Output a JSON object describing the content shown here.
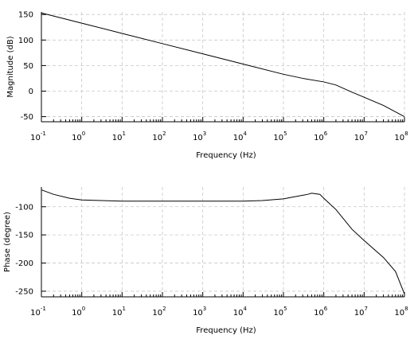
{
  "chart_data": [
    {
      "type": "line",
      "panel": "magnitude",
      "xlabel": "Frequency (Hz)",
      "ylabel": "Magnitude (dB)",
      "x_scale": "log",
      "xlim": [
        0.1,
        100000000
      ],
      "ylim": [
        -60,
        155
      ],
      "x_ticks": [
        {
          "base": "10",
          "exp": "-1"
        },
        {
          "base": "10",
          "exp": "0"
        },
        {
          "base": "10",
          "exp": "1"
        },
        {
          "base": "10",
          "exp": "2"
        },
        {
          "base": "10",
          "exp": "3"
        },
        {
          "base": "10",
          "exp": "4"
        },
        {
          "base": "10",
          "exp": "5"
        },
        {
          "base": "10",
          "exp": "6"
        },
        {
          "base": "10",
          "exp": "7"
        },
        {
          "base": "10",
          "exp": "8"
        }
      ],
      "y_ticks": [
        "-50",
        "0",
        "50",
        "100",
        "150"
      ],
      "y_tick_values": [
        -50,
        0,
        50,
        100,
        150
      ],
      "grid": true,
      "series": [
        {
          "x": [
            0.1,
            1,
            10,
            100,
            1000,
            10000,
            100000,
            300000,
            1000000,
            2000000,
            5000000,
            10000000,
            30000000,
            100000000
          ],
          "y": [
            153,
            133,
            113,
            93,
            73,
            53,
            33,
            25,
            18,
            12,
            -2,
            -12,
            -28,
            -50
          ]
        }
      ]
    },
    {
      "type": "line",
      "panel": "phase",
      "xlabel": "Frequency (Hz)",
      "ylabel": "Phase (degree)",
      "x_scale": "log",
      "xlim": [
        0.1,
        100000000
      ],
      "ylim": [
        -260,
        -65
      ],
      "x_ticks": [
        {
          "base": "10",
          "exp": "-1"
        },
        {
          "base": "10",
          "exp": "0"
        },
        {
          "base": "10",
          "exp": "1"
        },
        {
          "base": "10",
          "exp": "2"
        },
        {
          "base": "10",
          "exp": "3"
        },
        {
          "base": "10",
          "exp": "4"
        },
        {
          "base": "10",
          "exp": "5"
        },
        {
          "base": "10",
          "exp": "6"
        },
        {
          "base": "10",
          "exp": "7"
        },
        {
          "base": "10",
          "exp": "8"
        }
      ],
      "y_ticks": [
        "-250",
        "-200",
        "-150",
        "-100"
      ],
      "y_tick_values": [
        -250,
        -200,
        -150,
        -100
      ],
      "grid": true,
      "series": [
        {
          "x": [
            0.1,
            0.2,
            0.5,
            1,
            3,
            10,
            100,
            1000,
            10000,
            30000,
            100000,
            200000,
            400000,
            500000,
            800000,
            1000000,
            2000000,
            5000000,
            10000000,
            30000000,
            60000000,
            100000000
          ],
          "y": [
            -70,
            -78,
            -85,
            -88,
            -89,
            -90,
            -90,
            -90,
            -90,
            -89,
            -86,
            -82,
            -78,
            -76,
            -78,
            -85,
            -105,
            -140,
            -160,
            -190,
            -215,
            -255
          ]
        }
      ]
    }
  ]
}
